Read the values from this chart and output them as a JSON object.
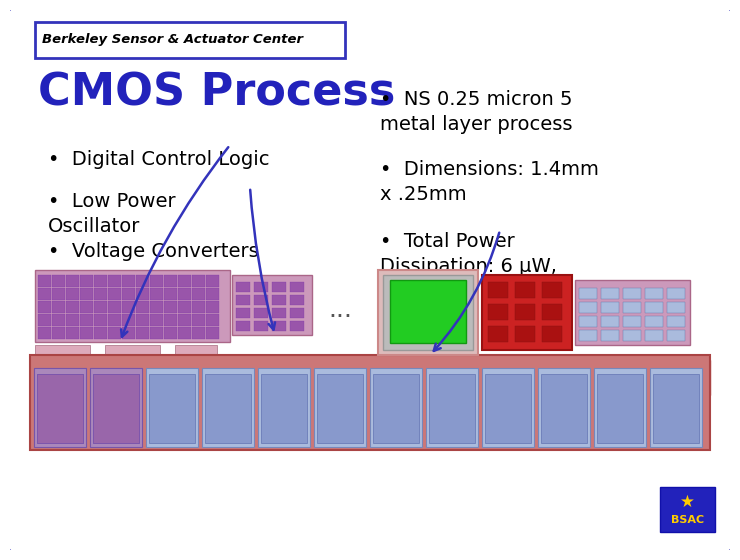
{
  "background_color": "#ffffff",
  "border_color": "#3333bb",
  "border_linewidth": 3,
  "header_text": "Berkeley Sensor & Actuator Center",
  "header_text_color": "#000000",
  "title_text": "CMOS Process",
  "title_color": "#2222bb",
  "title_fontsize": 32,
  "left_bullets": [
    "Digital Control Logic",
    "Low Power\nOscillator",
    "Voltage Converters"
  ],
  "right_bullets": [
    "NS 0.25 micron 5\nmetal layer process",
    "Dimensions: 1.4mm\nx .25mm",
    "Total Power\nDissipation: 6 μW,\n50 nW"
  ],
  "bullet_fontsize": 14,
  "bullet_color": "#000000",
  "ellipsis_text": "...",
  "bsac_logo_color": "#2222bb",
  "bsac_text_color": "#ffcc00",
  "arrow_color": "#3333bb"
}
